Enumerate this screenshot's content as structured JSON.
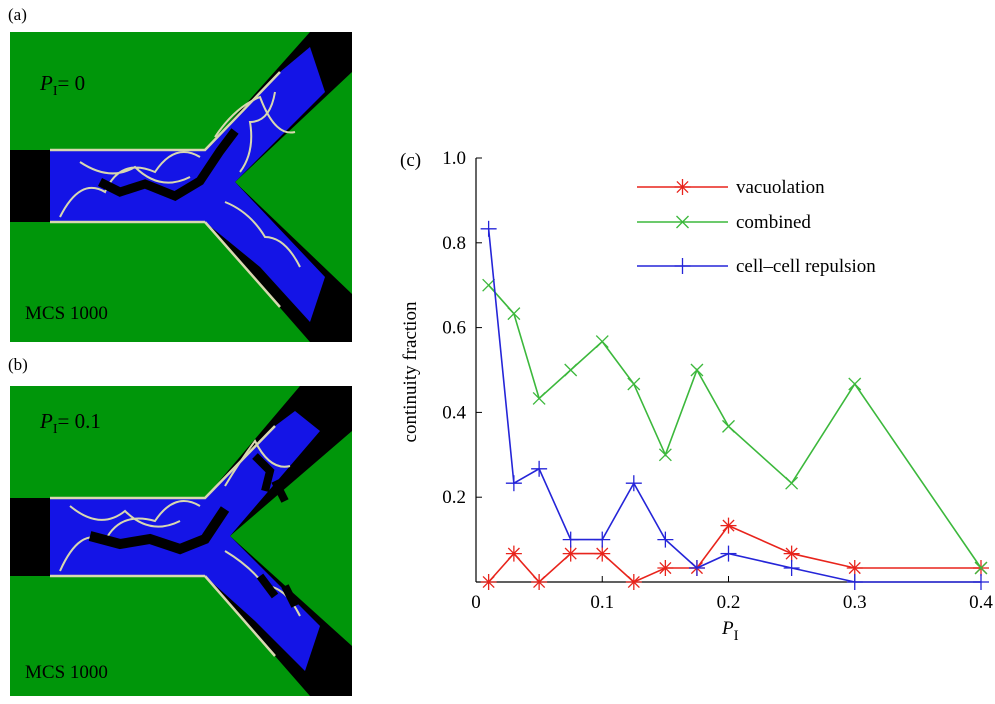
{
  "panels": {
    "a": {
      "label": "(a)",
      "p_symbol": "P",
      "p_sub": "I",
      "p_value": "= 0",
      "mcs": "MCS 1000"
    },
    "b": {
      "label": "(b)",
      "p_symbol": "P",
      "p_sub": "I",
      "p_value": "= 0.1",
      "mcs": "MCS 1000"
    }
  },
  "chart_data": {
    "type": "line",
    "panel_label": "(c)",
    "xlabel": "P",
    "xlabel_sub": "I",
    "ylabel": "continuity fraction",
    "xlim": [
      0,
      0.4
    ],
    "ylim": [
      0,
      1.0
    ],
    "x_ticks": [
      "0",
      "0.1",
      "0.2",
      "0.3",
      "0.4"
    ],
    "y_ticks": [
      "0.2",
      "0.4",
      "0.6",
      "0.8",
      "1.0"
    ],
    "legend_position": "top-right",
    "series": [
      {
        "name": "vacuolation",
        "color": "#e8241c",
        "marker": "asterisk",
        "x": [
          0.01,
          0.03,
          0.05,
          0.075,
          0.1,
          0.125,
          0.15,
          0.175,
          0.2,
          0.25,
          0.3,
          0.4
        ],
        "y": [
          0.0,
          0.067,
          0.0,
          0.067,
          0.067,
          0.0,
          0.033,
          0.033,
          0.133,
          0.067,
          0.033,
          0.033
        ]
      },
      {
        "name": "combined",
        "color": "#3cb83c",
        "marker": "x",
        "x": [
          0.01,
          0.03,
          0.05,
          0.075,
          0.1,
          0.125,
          0.15,
          0.175,
          0.2,
          0.25,
          0.3,
          0.4
        ],
        "y": [
          0.7,
          0.633,
          0.433,
          0.5,
          0.567,
          0.467,
          0.3,
          0.5,
          0.367,
          0.233,
          0.467,
          0.033
        ]
      },
      {
        "name": "cell–cell repulsion",
        "color": "#2525d8",
        "marker": "plus",
        "x": [
          0.01,
          0.03,
          0.05,
          0.075,
          0.1,
          0.125,
          0.15,
          0.175,
          0.2,
          0.25,
          0.3,
          0.4
        ],
        "y": [
          0.833,
          0.233,
          0.267,
          0.1,
          0.1,
          0.233,
          0.1,
          0.033,
          0.067,
          0.033,
          0.0,
          0.0
        ]
      }
    ]
  }
}
